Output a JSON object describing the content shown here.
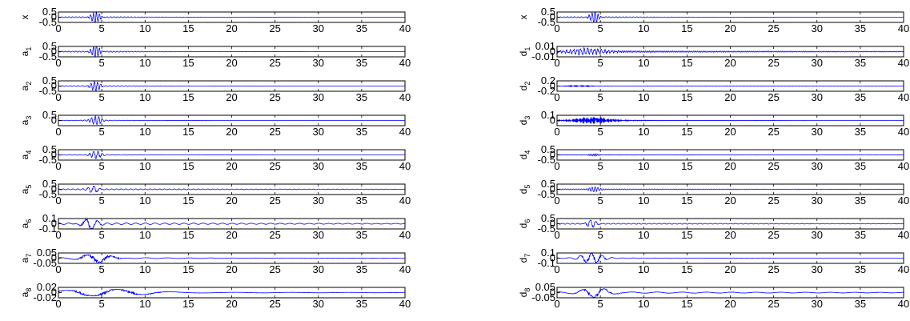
{
  "chart_data": [
    {
      "type": "line",
      "ylabel": "x",
      "sub": "",
      "ylim": [
        -0.5,
        0.5
      ],
      "yticks": [
        "0.5",
        "0",
        "-0.5"
      ],
      "xlim": [
        0,
        40
      ],
      "xticks": [
        "0",
        "5",
        "10",
        "15",
        "20",
        "25",
        "30",
        "35",
        "40"
      ],
      "signal": {
        "center": 4.3,
        "amp": 0.45,
        "freq": 3.0,
        "width": 0.7,
        "tail_amp": 0.08,
        "tail_width": 8.0,
        "tail_freq": 2.5
      },
      "line_color": "#0000ff"
    },
    {
      "type": "line",
      "ylabel": "a",
      "sub": "1",
      "ylim": [
        -0.5,
        0.5
      ],
      "yticks": [
        "0.5",
        "0",
        "-0.5"
      ],
      "xlim": [
        0,
        40
      ],
      "xticks": [
        "0",
        "5",
        "10",
        "15",
        "20",
        "25",
        "30",
        "35",
        "40"
      ],
      "signal": {
        "center": 4.3,
        "amp": 0.45,
        "freq": 3.0,
        "width": 0.7,
        "tail_amp": 0.08,
        "tail_width": 8.0,
        "tail_freq": 2.5
      },
      "line_color": "#0000ff"
    },
    {
      "type": "line",
      "ylabel": "a",
      "sub": "2",
      "ylim": [
        -0.5,
        0.5
      ],
      "yticks": [
        "0.5",
        "0",
        "-0.5"
      ],
      "xlim": [
        0,
        40
      ],
      "xticks": [
        "0",
        "5",
        "10",
        "15",
        "20",
        "25",
        "30",
        "35",
        "40"
      ],
      "signal": {
        "center": 4.3,
        "amp": 0.45,
        "freq": 2.7,
        "width": 0.7,
        "tail_amp": 0.06,
        "tail_width": 8.0,
        "tail_freq": 2.2
      },
      "line_color": "#0000ff"
    },
    {
      "type": "line",
      "ylabel": "a",
      "sub": "3",
      "ylim": [
        -0.5,
        0.5
      ],
      "yticks": [
        "0.5",
        "0"
      ],
      "xlim": [
        0,
        40
      ],
      "xticks": [
        "0",
        "5",
        "10",
        "15",
        "20",
        "25",
        "30",
        "35",
        "40"
      ],
      "signal": {
        "center": 4.3,
        "amp": 0.45,
        "freq": 2.4,
        "width": 0.7,
        "tail_amp": 0.05,
        "tail_width": 5.0,
        "tail_freq": 2.0
      },
      "line_color": "#0000ff"
    },
    {
      "type": "line",
      "ylabel": "a",
      "sub": "4",
      "ylim": [
        -0.5,
        0.5
      ],
      "yticks": [
        "0.5",
        "0",
        "-0.5"
      ],
      "xlim": [
        0,
        40
      ],
      "xticks": [
        "0",
        "5",
        "10",
        "15",
        "20",
        "25",
        "30",
        "35",
        "40"
      ],
      "signal": {
        "center": 4.3,
        "amp": 0.4,
        "freq": 2.0,
        "width": 0.7,
        "tail_amp": 0.04,
        "tail_width": 8.0,
        "tail_freq": 1.6
      },
      "line_color": "#0000ff"
    },
    {
      "type": "line",
      "ylabel": "a",
      "sub": "5",
      "ylim": [
        -0.5,
        0.5
      ],
      "yticks": [
        "0.5",
        "0",
        "-0.5"
      ],
      "xlim": [
        0,
        40
      ],
      "xticks": [
        "0",
        "5",
        "10",
        "15",
        "20",
        "25",
        "30",
        "35",
        "40"
      ],
      "signal": {
        "center": 4.1,
        "amp": 0.35,
        "freq": 1.5,
        "width": 0.7,
        "tail_amp": 0.06,
        "tail_width": 40.0,
        "tail_freq": 1.8
      },
      "line_color": "#0000ff"
    },
    {
      "type": "line",
      "ylabel": "a",
      "sub": "6",
      "ylim": [
        -0.1,
        0.1
      ],
      "yticks": [
        "0.1",
        "0",
        "-0.1"
      ],
      "xlim": [
        0,
        40
      ],
      "xticks": [
        "0",
        "5",
        "10",
        "15",
        "20",
        "25",
        "30",
        "35",
        "40"
      ],
      "signal": {
        "center": 3.5,
        "amp": 0.09,
        "freq": 0.7,
        "width": 1.2,
        "tail_amp": 0.02,
        "tail_width": 40.0,
        "tail_freq": 0.9
      },
      "line_color": "#0000ff"
    },
    {
      "type": "line",
      "ylabel": "a",
      "sub": "7",
      "ylim": [
        -0.05,
        0.05
      ],
      "yticks": [
        "0.05",
        "0",
        "-0.05"
      ],
      "xlim": [
        0,
        40
      ],
      "xticks": [
        "0",
        "5",
        "10",
        "15",
        "20",
        "25",
        "30",
        "35",
        "40"
      ],
      "signal": {
        "center": 4.5,
        "amp": 0.045,
        "freq": 0.35,
        "width": 2.2,
        "tail_amp": 0.008,
        "tail_width": 12.0,
        "tail_freq": 0.4
      },
      "line_color": "#0000ff"
    },
    {
      "type": "line",
      "ylabel": "a",
      "sub": "8",
      "ylim": [
        -0.02,
        0.02
      ],
      "yticks": [
        "0.02",
        "0",
        "-0.02"
      ],
      "xlim": [
        0,
        40
      ],
      "xticks": [
        "0",
        "5",
        "10",
        "15",
        "20",
        "25",
        "30",
        "35",
        "40"
      ],
      "signal": {
        "center": 5.0,
        "amp": 0.012,
        "freq": 0.17,
        "width": 6.0,
        "tail_amp": 0.002,
        "tail_width": 40.0,
        "tail_freq": 0.15
      },
      "line_color": "#0000ff"
    },
    {
      "type": "line",
      "ylabel": "x",
      "sub": "",
      "ylim": [
        -0.5,
        0.5
      ],
      "yticks": [
        "0.5",
        "0",
        "-0.5"
      ],
      "xlim": [
        0,
        40
      ],
      "xticks": [
        "0",
        "5",
        "10",
        "15",
        "20",
        "25",
        "30",
        "35",
        "40"
      ],
      "signal": {
        "center": 4.3,
        "amp": 0.45,
        "freq": 3.0,
        "width": 0.7,
        "tail_amp": 0.08,
        "tail_width": 8.0,
        "tail_freq": 2.5
      },
      "line_color": "#0000ff"
    },
    {
      "type": "line",
      "ylabel": "d",
      "sub": "1",
      "ylim": [
        -0.01,
        0.01
      ],
      "yticks": [
        "0.01",
        "0",
        "-0.01"
      ],
      "xlim": [
        0,
        40
      ],
      "xticks": [
        "0",
        "5",
        "10",
        "15",
        "20",
        "25",
        "30",
        "35",
        "40"
      ],
      "signal": {
        "center": 3.5,
        "amp": 0.006,
        "freq": 20.0,
        "width": 2.5,
        "tail_amp": 0.002,
        "tail_width": 40.0,
        "tail_freq": 18.0
      },
      "line_color": "#0000ff"
    },
    {
      "type": "line",
      "ylabel": "d",
      "sub": "2",
      "ylim": [
        -0.2,
        0.2
      ],
      "yticks": [
        "0.2",
        "0",
        "-0.2"
      ],
      "xlim": [
        0,
        40
      ],
      "xticks": [
        "0",
        "5",
        "10",
        "15",
        "20",
        "25",
        "30",
        "35",
        "40"
      ],
      "signal": {
        "center": 2.5,
        "amp": 0.02,
        "freq": 12.0,
        "width": 2.0,
        "tail_amp": 0.004,
        "tail_width": 40.0,
        "tail_freq": 10.0
      },
      "line_color": "#0000ff"
    },
    {
      "type": "line",
      "ylabel": "d",
      "sub": "3",
      "ylim": [
        -0.1,
        0.1
      ],
      "yticks": [
        "0.1",
        "0"
      ],
      "xlim": [
        0,
        40
      ],
      "xticks": [
        "0",
        "5",
        "10",
        "15",
        "20",
        "25",
        "30",
        "35",
        "40"
      ],
      "signal": {
        "center": 4.0,
        "amp": 0.06,
        "freq": 10.0,
        "width": 2.5,
        "tail_amp": 0.015,
        "tail_width": 8.0,
        "tail_freq": 9.0
      },
      "line_color": "#0000ff"
    },
    {
      "type": "line",
      "ylabel": "d",
      "sub": "4",
      "ylim": [
        -0.5,
        0.5
      ],
      "yticks": [
        "0.5",
        "0",
        "-0.5"
      ],
      "xlim": [
        0,
        40
      ],
      "xticks": [
        "0",
        "5",
        "10",
        "15",
        "20",
        "25",
        "30",
        "35",
        "40"
      ],
      "signal": {
        "center": 4.3,
        "amp": 0.08,
        "freq": 5.0,
        "width": 1.0,
        "tail_amp": 0.03,
        "tail_width": 40.0,
        "tail_freq": 4.5
      },
      "line_color": "#0000ff"
    },
    {
      "type": "line",
      "ylabel": "d",
      "sub": "5",
      "ylim": [
        -0.5,
        0.5
      ],
      "yticks": [
        "0.5",
        "0",
        "-0.5"
      ],
      "xlim": [
        0,
        40
      ],
      "xticks": [
        "0",
        "5",
        "10",
        "15",
        "20",
        "25",
        "30",
        "35",
        "40"
      ],
      "signal": {
        "center": 4.3,
        "amp": 0.2,
        "freq": 3.0,
        "width": 0.7,
        "tail_amp": 0.05,
        "tail_width": 40.0,
        "tail_freq": 3.2
      },
      "line_color": "#0000ff"
    },
    {
      "type": "line",
      "ylabel": "d",
      "sub": "6",
      "ylim": [
        -0.5,
        0.5
      ],
      "yticks": [
        "0.5",
        "0",
        "-0.5"
      ],
      "xlim": [
        0,
        40
      ],
      "xticks": [
        "0",
        "5",
        "10",
        "15",
        "20",
        "25",
        "30",
        "35",
        "40"
      ],
      "signal": {
        "center": 4.0,
        "amp": 0.4,
        "freq": 1.6,
        "width": 0.7,
        "tail_amp": 0.06,
        "tail_width": 40.0,
        "tail_freq": 1.7
      },
      "line_color": "#0000ff"
    },
    {
      "type": "line",
      "ylabel": "d",
      "sub": "7",
      "ylim": [
        -0.1,
        0.1
      ],
      "yticks": [
        "0.1",
        "0",
        "-0.1"
      ],
      "xlim": [
        0,
        40
      ],
      "xticks": [
        "0",
        "5",
        "10",
        "15",
        "20",
        "25",
        "30",
        "35",
        "40"
      ],
      "signal": {
        "center": 4.0,
        "amp": 0.09,
        "freq": 0.8,
        "width": 1.5,
        "tail_amp": 0.01,
        "tail_width": 8.0,
        "tail_freq": 0.8
      },
      "line_color": "#0000ff"
    },
    {
      "type": "line",
      "ylabel": "d",
      "sub": "8",
      "ylim": [
        -0.05,
        0.05
      ],
      "yticks": [
        "0.05",
        "0",
        "-0.05"
      ],
      "xlim": [
        0,
        40
      ],
      "xticks": [
        "0",
        "5",
        "10",
        "15",
        "20",
        "25",
        "30",
        "35",
        "40"
      ],
      "signal": {
        "center": 4.5,
        "amp": 0.04,
        "freq": 0.4,
        "width": 2.0,
        "tail_amp": 0.008,
        "tail_width": 40.0,
        "tail_freq": 0.35
      },
      "line_color": "#0000ff"
    }
  ]
}
